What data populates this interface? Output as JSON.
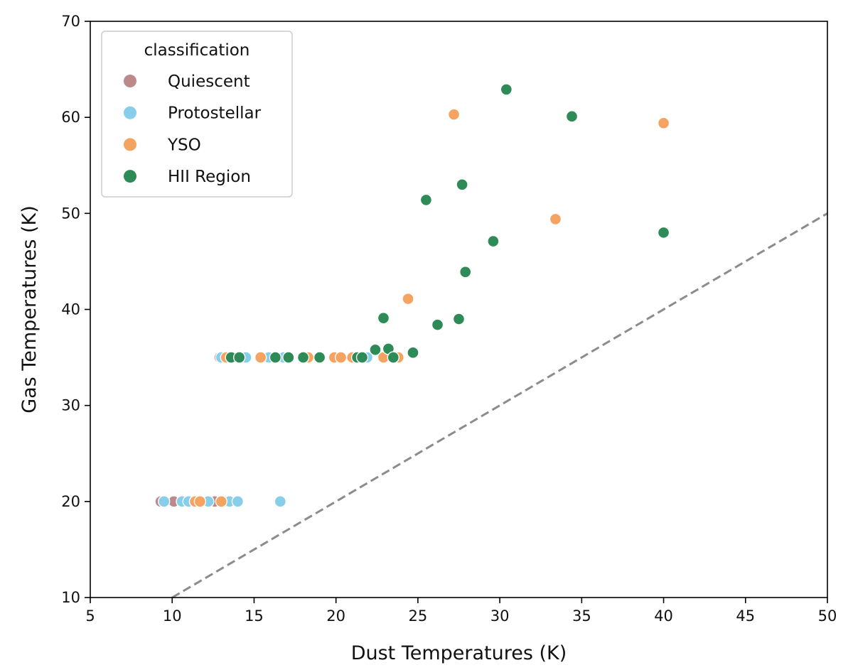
{
  "chart_data": {
    "type": "scatter",
    "title": "",
    "xlabel": "Dust Temperatures (K)",
    "ylabel": "Gas Temperatures (K)",
    "xlim": [
      5,
      50
    ],
    "ylim": [
      10,
      70
    ],
    "xticks": [
      "5",
      "10",
      "15",
      "20",
      "25",
      "30",
      "35",
      "40",
      "45",
      "50"
    ],
    "yticks": [
      "10",
      "20",
      "30",
      "40",
      "50",
      "60",
      "70"
    ],
    "grid": false,
    "legend": {
      "title": "classification",
      "position": "top-left"
    },
    "reference_line": {
      "label": "y = x",
      "style": "dashed",
      "color": "#8c8c8c",
      "from": [
        10,
        10
      ],
      "to": [
        50,
        50
      ]
    },
    "series": [
      {
        "name": "Quiescent",
        "color": "#bc8a8a",
        "points": [
          [
            9.3,
            20
          ],
          [
            10.1,
            20
          ],
          [
            12.6,
            20
          ],
          [
            13.2,
            20
          ],
          [
            12.9,
            35
          ],
          [
            13.2,
            35
          ]
        ]
      },
      {
        "name": "Protostellar",
        "color": "#87ceeb",
        "points": [
          [
            9.5,
            20
          ],
          [
            10.6,
            20
          ],
          [
            11.0,
            20
          ],
          [
            11.4,
            20
          ],
          [
            11.8,
            20
          ],
          [
            12.2,
            20
          ],
          [
            13.5,
            20
          ],
          [
            14.0,
            20
          ],
          [
            16.6,
            20
          ],
          [
            13.6,
            35
          ],
          [
            14.5,
            35
          ],
          [
            15.9,
            35
          ],
          [
            16.8,
            35
          ],
          [
            21.9,
            35
          ],
          [
            13.0,
            35
          ]
        ]
      },
      {
        "name": "YSO",
        "color": "#f4a460",
        "points": [
          [
            11.4,
            20
          ],
          [
            11.7,
            20
          ],
          [
            13.0,
            20
          ],
          [
            13.3,
            35
          ],
          [
            15.4,
            35
          ],
          [
            18.3,
            35
          ],
          [
            19.9,
            35
          ],
          [
            20.3,
            35
          ],
          [
            21.0,
            35
          ],
          [
            22.9,
            35
          ],
          [
            23.8,
            35
          ],
          [
            24.4,
            41.1
          ],
          [
            27.2,
            60.3
          ],
          [
            33.4,
            49.4
          ],
          [
            40.0,
            59.4
          ]
        ]
      },
      {
        "name": "HII Region",
        "color": "#2e8b57",
        "points": [
          [
            13.6,
            35
          ],
          [
            14.1,
            35
          ],
          [
            16.3,
            35
          ],
          [
            17.1,
            35
          ],
          [
            18.0,
            35
          ],
          [
            19.0,
            35
          ],
          [
            21.3,
            35
          ],
          [
            21.6,
            35
          ],
          [
            22.4,
            35.8
          ],
          [
            23.2,
            35.9
          ],
          [
            23.5,
            35
          ],
          [
            24.7,
            35.5
          ],
          [
            22.9,
            39.1
          ],
          [
            25.5,
            51.4
          ],
          [
            26.2,
            38.4
          ],
          [
            27.5,
            39.0
          ],
          [
            27.7,
            53.0
          ],
          [
            27.9,
            43.9
          ],
          [
            29.6,
            47.1
          ],
          [
            30.4,
            62.9
          ],
          [
            34.4,
            60.1
          ],
          [
            40.0,
            48.0
          ]
        ]
      }
    ]
  }
}
